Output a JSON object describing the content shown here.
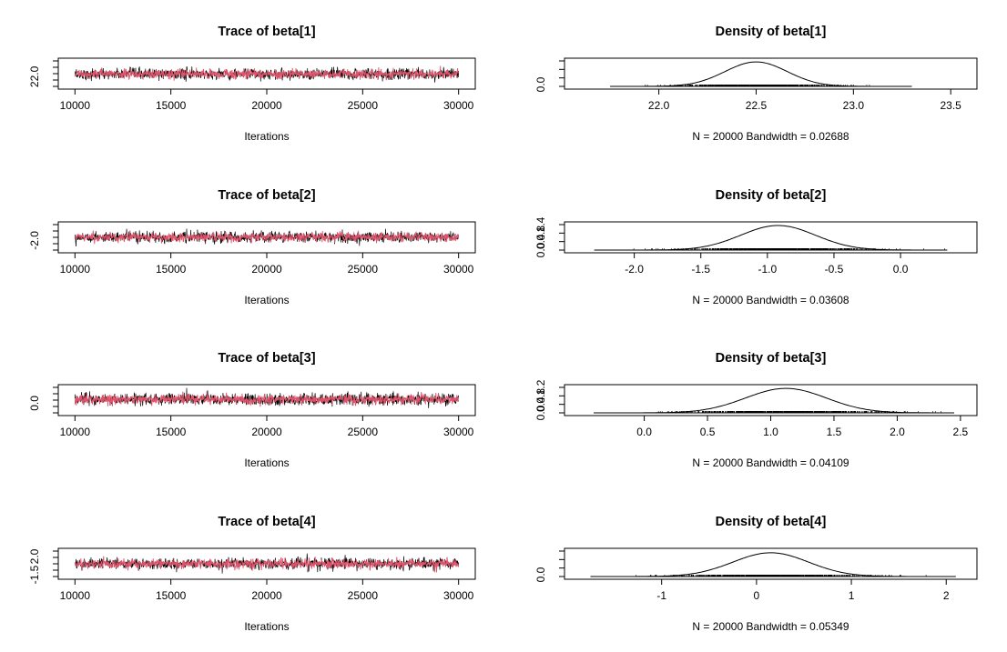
{
  "chart_data": [
    {
      "type": "line",
      "title": "Trace of beta[1]",
      "xlabel": "Iterations",
      "ylabel": "",
      "xlim": [
        10000,
        30000
      ],
      "xticks": [
        "10000",
        "15000",
        "20000",
        "25000",
        "30000"
      ],
      "yticks": [
        "22.0"
      ],
      "ylim": [
        21.75,
        23.3
      ],
      "trace": {
        "iterations": [
          10000,
          30000
        ],
        "mean": 22.5,
        "sd": 0.17
      },
      "series": [
        {
          "color": "#000000"
        },
        {
          "color": "#DF536B"
        }
      ]
    },
    {
      "type": "line",
      "title": "Density of beta[1]",
      "xlabel": "N = 20000   Bandwidth = 0.02688",
      "ylabel": "",
      "xlim": [
        21.6,
        23.55
      ],
      "xticks": [
        "22.0",
        "22.5",
        "23.0",
        "23.5"
      ],
      "yticks": [
        "0.0"
      ],
      "ylim": [
        0,
        2.6
      ],
      "density": {
        "mean": 22.5,
        "sd": 0.16,
        "peak": 2.5,
        "range": [
          21.75,
          23.3
        ]
      }
    },
    {
      "type": "line",
      "title": "Trace of beta[2]",
      "xlabel": "Iterations",
      "ylabel": "",
      "xlim": [
        10000,
        30000
      ],
      "xticks": [
        "10000",
        "15000",
        "20000",
        "25000",
        "30000"
      ],
      "yticks": [
        "-2.0"
      ],
      "ylim": [
        -2.3,
        0.35
      ],
      "trace": {
        "iterations": [
          10000,
          30000
        ],
        "mean": -0.95,
        "sd": 0.28
      },
      "series": [
        {
          "color": "#000000"
        },
        {
          "color": "#DF536B"
        }
      ]
    },
    {
      "type": "line",
      "title": "Density of beta[2]",
      "xlabel": "N = 20000   Bandwidth = 0.03608",
      "ylabel": "",
      "xlim": [
        -2.4,
        0.45
      ],
      "xticks": [
        "-2.0",
        "-1.5",
        "-1.0",
        "-0.5",
        "0.0"
      ],
      "yticks": [
        "0.0",
        "0.4",
        "0.8",
        "1.4"
      ],
      "ylim": [
        0,
        1.45
      ],
      "density": {
        "mean": -0.92,
        "sd": 0.28,
        "peak": 1.4,
        "range": [
          -2.3,
          0.35
        ]
      }
    },
    {
      "type": "line",
      "title": "Trace of beta[3]",
      "xlabel": "Iterations",
      "ylabel": "",
      "xlim": [
        10000,
        30000
      ],
      "xticks": [
        "10000",
        "15000",
        "20000",
        "25000",
        "30000"
      ],
      "yticks": [
        "0.0"
      ],
      "ylim": [
        -0.4,
        2.45
      ],
      "trace": {
        "iterations": [
          10000,
          30000
        ],
        "mean": 1.1,
        "sd": 0.33
      },
      "series": [
        {
          "color": "#000000"
        },
        {
          "color": "#DF536B"
        }
      ]
    },
    {
      "type": "line",
      "title": "Density of beta[3]",
      "xlabel": "N = 20000   Bandwidth = 0.04109",
      "ylabel": "",
      "xlim": [
        -0.5,
        2.5
      ],
      "xticks": [
        "0.0",
        "0.5",
        "1.0",
        "1.5",
        "2.0",
        "2.5"
      ],
      "yticks": [
        "0.0",
        "0.4",
        "0.8",
        "1.2"
      ],
      "ylim": [
        0,
        1.27
      ],
      "density": {
        "mean": 1.12,
        "sd": 0.32,
        "peak": 1.22,
        "range": [
          -0.4,
          2.45
        ]
      }
    },
    {
      "type": "line",
      "title": "Trace of beta[4]",
      "xlabel": "Iterations",
      "ylabel": "",
      "xlim": [
        10000,
        30000
      ],
      "xticks": [
        "10000",
        "15000",
        "20000",
        "25000",
        "30000"
      ],
      "yticks": [
        "-1.5",
        "2.0"
      ],
      "ylim": [
        -1.75,
        2.1
      ],
      "trace": {
        "iterations": [
          10000,
          30000
        ],
        "mean": 0.17,
        "sd": 0.42
      },
      "series": [
        {
          "color": "#000000"
        },
        {
          "color": "#DF536B"
        }
      ]
    },
    {
      "type": "line",
      "title": "Density of beta[4]",
      "xlabel": "N = 20000   Bandwidth = 0.05349",
      "ylabel": "",
      "xlim": [
        -1.85,
        2.15
      ],
      "xticks": [
        "-1",
        "0",
        "1",
        "2"
      ],
      "yticks": [
        "0.0"
      ],
      "ylim": [
        0,
        1.05
      ],
      "density": {
        "mean": 0.15,
        "sd": 0.4,
        "peak": 0.98,
        "range": [
          -1.75,
          2.1
        ]
      }
    }
  ]
}
